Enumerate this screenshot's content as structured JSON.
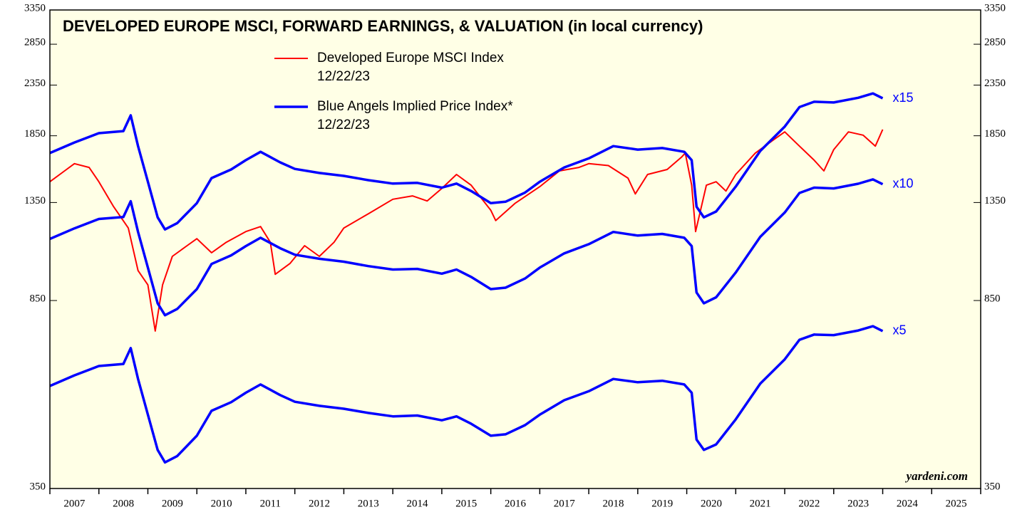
{
  "chart_data": {
    "type": "line",
    "title": "DEVELOPED EUROPE MSCI, FORWARD EARNINGS, & VALUATION (in local currency)",
    "source": "yardeni.com",
    "log_scale": true,
    "xlim": [
      2007,
      2026
    ],
    "xticks": [
      2007,
      2008,
      2009,
      2010,
      2011,
      2012,
      2013,
      2014,
      2015,
      2016,
      2017,
      2018,
      2019,
      2020,
      2021,
      2022,
      2023,
      2024,
      2025,
      2026
    ],
    "xtick_labels": [
      {
        "value": 2007.5,
        "label": "2007"
      },
      {
        "value": 2008.5,
        "label": "2008"
      },
      {
        "value": 2009.5,
        "label": "2009"
      },
      {
        "value": 2010.5,
        "label": "2010"
      },
      {
        "value": 2011.5,
        "label": "2011"
      },
      {
        "value": 2012.5,
        "label": "2012"
      },
      {
        "value": 2013.5,
        "label": "2013"
      },
      {
        "value": 2014.5,
        "label": "2014"
      },
      {
        "value": 2015.5,
        "label": "2015"
      },
      {
        "value": 2016.5,
        "label": "2016"
      },
      {
        "value": 2017.5,
        "label": "2017"
      },
      {
        "value": 2018.5,
        "label": "2018"
      },
      {
        "value": 2019.5,
        "label": "2019"
      },
      {
        "value": 2020.5,
        "label": "2020"
      },
      {
        "value": 2021.5,
        "label": "2021"
      },
      {
        "value": 2022.5,
        "label": "2022"
      },
      {
        "value": 2023.5,
        "label": "2023"
      },
      {
        "value": 2024.5,
        "label": "2024"
      },
      {
        "value": 2025.5,
        "label": "2025"
      }
    ],
    "ylim": [
      350,
      3350
    ],
    "yticks": [
      350,
      850,
      1350,
      1850,
      2350,
      2850,
      3350
    ],
    "series": [
      {
        "name": "Developed Europe MSCI Index",
        "date": "12/22/23",
        "color": "#ff0000",
        "width": 2,
        "x": [
          2007.0,
          2007.3,
          2007.5,
          2007.8,
          2008.0,
          2008.3,
          2008.6,
          2008.8,
          2009.0,
          2009.15,
          2009.3,
          2009.5,
          2009.8,
          2010.0,
          2010.3,
          2010.6,
          2011.0,
          2011.3,
          2011.5,
          2011.6,
          2011.9,
          2012.2,
          2012.5,
          2012.8,
          2013.0,
          2013.5,
          2014.0,
          2014.4,
          2014.7,
          2015.0,
          2015.3,
          2015.6,
          2016.0,
          2016.1,
          2016.5,
          2017.0,
          2017.4,
          2017.8,
          2018.0,
          2018.4,
          2018.8,
          2018.95,
          2019.2,
          2019.6,
          2019.9,
          2019.97,
          2020.1,
          2020.18,
          2020.4,
          2020.6,
          2020.8,
          2021.0,
          2021.4,
          2021.8,
          2022.0,
          2022.3,
          2022.6,
          2022.8,
          2023.0,
          2023.3,
          2023.6,
          2023.85,
          2024.0
        ],
        "values": [
          1489,
          1567,
          1622,
          1593,
          1489,
          1324,
          1197,
          979,
          915,
          736,
          915,
          1047,
          1101,
          1138,
          1065,
          1119,
          1177,
          1205,
          1119,
          962,
          1012,
          1101,
          1047,
          1119,
          1197,
          1280,
          1371,
          1393,
          1360,
          1443,
          1541,
          1465,
          1302,
          1240,
          1346,
          1455,
          1567,
          1593,
          1622,
          1607,
          1515,
          1406,
          1541,
          1578,
          1675,
          1705,
          1465,
          1177,
          1465,
          1489,
          1425,
          1541,
          1705,
          1824,
          1884,
          1762,
          1649,
          1567,
          1733,
          1884,
          1855,
          1762,
          1905
        ]
      },
      {
        "name": "Blue Angels Implied Price Index*",
        "date": "12/22/23",
        "label": "x15",
        "color": "#0000ff",
        "width": 3.5,
        "x": [
          2007.0,
          2007.5,
          2008.0,
          2008.5,
          2008.65,
          2008.8,
          2009.0,
          2009.2,
          2009.35,
          2009.6,
          2010.0,
          2010.3,
          2010.7,
          2011.0,
          2011.3,
          2011.7,
          2012.0,
          2012.5,
          2013.0,
          2013.5,
          2014.0,
          2014.5,
          2015.0,
          2015.3,
          2015.6,
          2016.0,
          2016.3,
          2016.7,
          2017.0,
          2017.5,
          2018.0,
          2018.5,
          2019.0,
          2019.5,
          2019.95,
          2020.1,
          2020.2,
          2020.35,
          2020.6,
          2021.0,
          2021.5,
          2022.0,
          2022.3,
          2022.6,
          2023.0,
          2023.5,
          2023.8,
          2024.0
        ],
        "values": [
          1705,
          1792,
          1873,
          1891,
          2037,
          1762,
          1489,
          1259,
          1189,
          1225,
          1346,
          1515,
          1578,
          1649,
          1715,
          1632,
          1582,
          1552,
          1531,
          1500,
          1476,
          1481,
          1448,
          1476,
          1425,
          1346,
          1355,
          1415,
          1489,
          1593,
          1663,
          1762,
          1733,
          1746,
          1715,
          1649,
          1324,
          1259,
          1294,
          1455,
          1722,
          1932,
          2118,
          2172,
          2165,
          2213,
          2259,
          2208
        ]
      },
      {
        "label": "x10",
        "color": "#0000ff",
        "width": 3.5,
        "x": [
          2007.0,
          2007.5,
          2008.0,
          2008.5,
          2008.65,
          2008.8,
          2009.0,
          2009.2,
          2009.35,
          2009.6,
          2010.0,
          2010.3,
          2010.7,
          2011.0,
          2011.3,
          2011.7,
          2012.0,
          2012.5,
          2013.0,
          2013.5,
          2014.0,
          2014.5,
          2015.0,
          2015.3,
          2015.6,
          2016.0,
          2016.3,
          2016.7,
          2017.0,
          2017.5,
          2018.0,
          2018.5,
          2019.0,
          2019.5,
          2019.95,
          2020.1,
          2020.2,
          2020.35,
          2020.6,
          2021.0,
          2021.5,
          2022.0,
          2022.3,
          2022.6,
          2023.0,
          2023.5,
          2023.8,
          2024.0
        ],
        "values": [
          1137,
          1195,
          1249,
          1261,
          1358,
          1175,
          993,
          839,
          793,
          817,
          897,
          1010,
          1052,
          1099,
          1143,
          1088,
          1055,
          1035,
          1021,
          1000,
          984,
          987,
          965,
          984,
          950,
          897,
          903,
          943,
          993,
          1062,
          1109,
          1175,
          1155,
          1164,
          1143,
          1099,
          883,
          839,
          863,
          970,
          1148,
          1288,
          1412,
          1448,
          1443,
          1475,
          1506,
          1472
        ]
      },
      {
        "label": "x5",
        "color": "#0000ff",
        "width": 3.5,
        "x": [
          2007.0,
          2007.5,
          2008.0,
          2008.5,
          2008.65,
          2008.8,
          2009.0,
          2009.2,
          2009.35,
          2009.6,
          2010.0,
          2010.3,
          2010.7,
          2011.0,
          2011.3,
          2011.7,
          2012.0,
          2012.5,
          2013.0,
          2013.5,
          2014.0,
          2014.5,
          2015.0,
          2015.3,
          2015.6,
          2016.0,
          2016.3,
          2016.7,
          2017.0,
          2017.5,
          2018.0,
          2018.5,
          2019.0,
          2019.5,
          2019.95,
          2020.1,
          2020.2,
          2020.35,
          2020.6,
          2021.0,
          2021.5,
          2022.0,
          2022.3,
          2022.6,
          2023.0,
          2023.5,
          2023.8,
          2024.0
        ],
        "values": [
          568,
          597,
          624,
          630,
          679,
          587,
          496,
          420,
          396,
          408,
          449,
          505,
          526,
          550,
          572,
          544,
          527,
          517,
          510,
          500,
          492,
          494,
          483,
          492,
          475,
          449,
          452,
          472,
          496,
          531,
          554,
          587,
          578,
          582,
          572,
          550,
          441,
          420,
          431,
          485,
          574,
          644,
          706,
          724,
          722,
          738,
          753,
          736
        ]
      }
    ]
  }
}
